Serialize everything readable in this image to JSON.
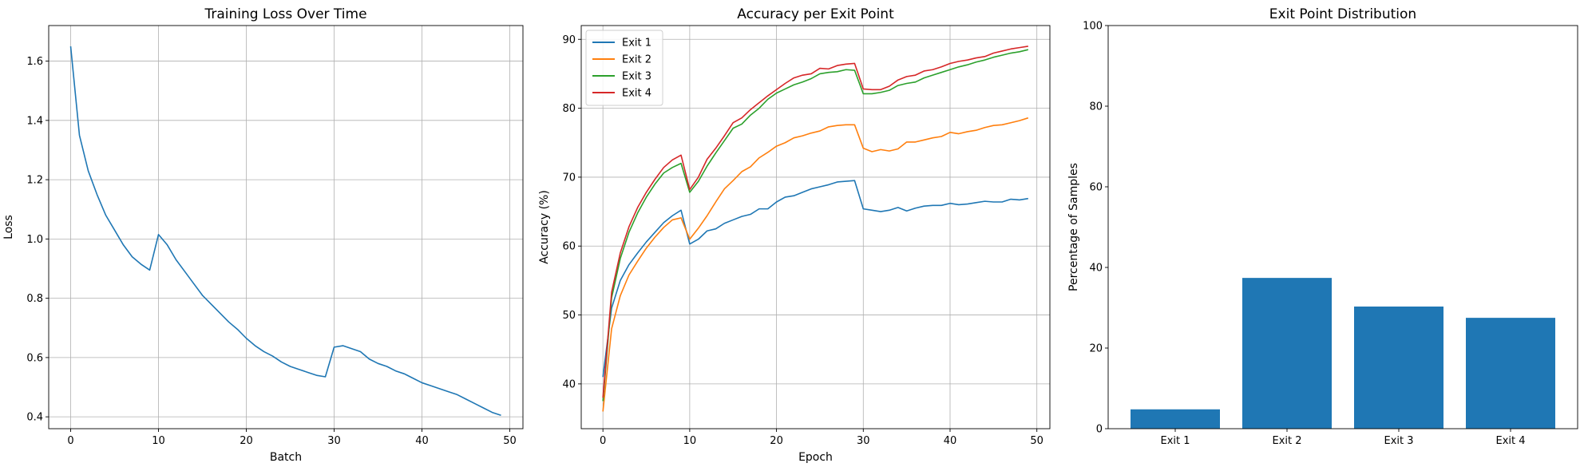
{
  "chart_data": [
    {
      "type": "line",
      "title": "Training Loss Over Time",
      "xlabel": "Batch",
      "ylabel": "Loss",
      "xlim": [
        -2.5,
        51.5
      ],
      "ylim": [
        0.36,
        1.72
      ],
      "xticks": [
        0,
        10,
        20,
        30,
        40,
        50
      ],
      "yticks": [
        0.4,
        0.6,
        0.8,
        1.0,
        1.2,
        1.4,
        1.6
      ],
      "yticks_fmt": 1,
      "grid": true,
      "series": [
        {
          "color": "#1f77b4",
          "values": [
            1.65,
            1.35,
            1.23,
            1.15,
            1.08,
            1.03,
            0.98,
            0.94,
            0.915,
            0.895,
            1.015,
            0.98,
            0.93,
            0.89,
            0.85,
            0.81,
            0.78,
            0.75,
            0.72,
            0.695,
            0.665,
            0.64,
            0.62,
            0.605,
            0.585,
            0.57,
            0.56,
            0.55,
            0.54,
            0.535,
            0.635,
            0.64,
            0.63,
            0.62,
            0.595,
            0.58,
            0.57,
            0.555,
            0.545,
            0.53,
            0.515,
            0.505,
            0.495,
            0.485,
            0.475,
            0.46,
            0.445,
            0.43,
            0.415,
            0.405
          ]
        }
      ]
    },
    {
      "type": "line",
      "title": "Accuracy per Exit Point",
      "xlabel": "Epoch",
      "ylabel": "Accuracy (%)",
      "xlim": [
        -2.5,
        51.5
      ],
      "ylim": [
        33.5,
        92
      ],
      "xticks": [
        0,
        10,
        20,
        30,
        40,
        50
      ],
      "yticks": [
        40,
        50,
        60,
        70,
        80,
        90
      ],
      "yticks_fmt": 0,
      "grid": true,
      "legend": "upper-left",
      "series": [
        {
          "name": "Exit 1",
          "color": "#1f77b4",
          "values": [
            41.0,
            51.0,
            55.0,
            57.3,
            59.0,
            60.6,
            62.0,
            63.4,
            64.4,
            65.2,
            60.3,
            61.0,
            62.2,
            62.5,
            63.3,
            63.8,
            64.3,
            64.6,
            65.4,
            65.4,
            66.4,
            67.1,
            67.3,
            67.8,
            68.3,
            68.6,
            68.9,
            69.3,
            69.4,
            69.5,
            65.4,
            65.2,
            65.0,
            65.2,
            65.6,
            65.1,
            65.5,
            65.8,
            65.9,
            65.9,
            66.2,
            66.0,
            66.1,
            66.3,
            66.5,
            66.4,
            66.4,
            66.8,
            66.7,
            66.9
          ]
        },
        {
          "name": "Exit 2",
          "color": "#ff7f0e",
          "values": [
            36.0,
            48.0,
            52.8,
            55.8,
            57.8,
            59.7,
            61.3,
            62.7,
            63.8,
            64.1,
            61.0,
            62.6,
            64.4,
            66.4,
            68.3,
            69.5,
            70.8,
            71.5,
            72.8,
            73.6,
            74.5,
            75.0,
            75.7,
            76.0,
            76.4,
            76.7,
            77.3,
            77.5,
            77.6,
            77.6,
            74.2,
            73.7,
            74.0,
            73.8,
            74.1,
            75.1,
            75.1,
            75.4,
            75.7,
            75.9,
            76.5,
            76.3,
            76.6,
            76.8,
            77.2,
            77.5,
            77.6,
            77.9,
            78.2,
            78.6
          ]
        },
        {
          "name": "Exit 3",
          "color": "#2ca02c",
          "values": [
            37.5,
            52.5,
            58.2,
            62.0,
            64.8,
            67.1,
            69.0,
            70.6,
            71.4,
            72.0,
            67.8,
            69.4,
            71.6,
            73.5,
            75.3,
            77.1,
            77.7,
            79.0,
            80.0,
            81.3,
            82.2,
            82.8,
            83.4,
            83.8,
            84.3,
            85.0,
            85.2,
            85.3,
            85.6,
            85.5,
            82.1,
            82.1,
            82.3,
            82.6,
            83.3,
            83.6,
            83.8,
            84.4,
            84.8,
            85.2,
            85.6,
            86.0,
            86.3,
            86.7,
            87.0,
            87.4,
            87.7,
            88.0,
            88.2,
            88.5
          ]
        },
        {
          "name": "Exit 4",
          "color": "#d62728",
          "values": [
            38.0,
            53.3,
            59.0,
            62.8,
            65.6,
            67.8,
            69.7,
            71.4,
            72.5,
            73.2,
            68.2,
            70.0,
            72.6,
            74.2,
            76.0,
            77.9,
            78.6,
            79.8,
            80.8,
            81.8,
            82.7,
            83.6,
            84.4,
            84.8,
            85.0,
            85.8,
            85.7,
            86.2,
            86.4,
            86.5,
            82.8,
            82.7,
            82.7,
            83.2,
            84.1,
            84.6,
            84.8,
            85.4,
            85.6,
            86.0,
            86.5,
            86.8,
            87.0,
            87.3,
            87.5,
            88.0,
            88.3,
            88.6,
            88.8,
            89.0
          ]
        }
      ]
    },
    {
      "type": "bar",
      "title": "Exit Point Distribution",
      "xlabel": "",
      "ylabel": "Percentage of Samples",
      "ylim": [
        0,
        100
      ],
      "yticks": [
        0,
        20,
        40,
        60,
        80,
        100
      ],
      "yticks_fmt": 0,
      "grid": false,
      "color": "#1f77b4",
      "categories": [
        "Exit 1",
        "Exit 2",
        "Exit 3",
        "Exit 4"
      ],
      "values": [
        4.8,
        37.4,
        30.3,
        27.5
      ]
    }
  ]
}
